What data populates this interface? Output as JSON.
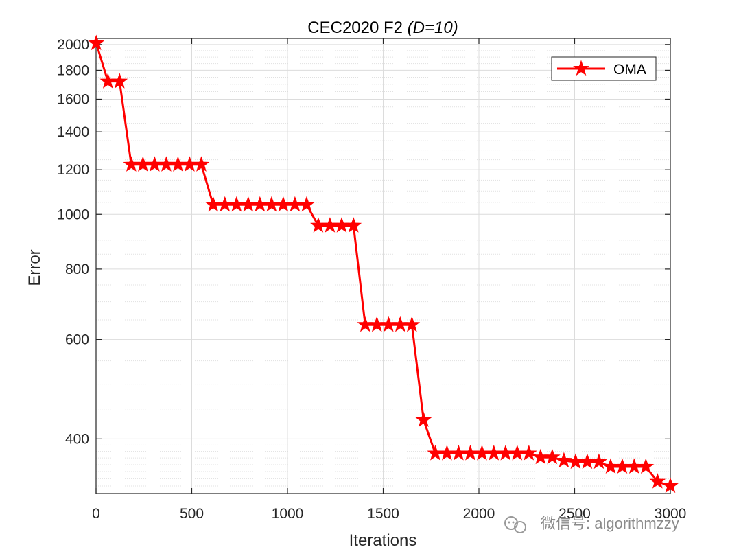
{
  "chart_data": {
    "type": "line",
    "title": "CEC2020 F2",
    "title_italic": "(D=10)",
    "xlabel": "Iterations",
    "ylabel": "Error",
    "xlim": [
      0,
      3000
    ],
    "ylim": [
      320,
      2050
    ],
    "yscale": "log",
    "grid": true,
    "legend_location": "top-right",
    "xticks": [
      0,
      500,
      1000,
      1500,
      2000,
      2500,
      3000
    ],
    "yticks": [
      400,
      600,
      800,
      1000,
      1200,
      1400,
      1600,
      1800,
      2000
    ],
    "series": [
      {
        "name": "OMA",
        "color": "#ff0000",
        "marker": "star",
        "x": [
          1,
          62,
          123,
          184,
          245,
          306,
          367,
          428,
          489,
          550,
          612,
          673,
          734,
          795,
          856,
          917,
          978,
          1039,
          1100,
          1161,
          1222,
          1283,
          1345,
          1406,
          1467,
          1528,
          1589,
          1650,
          1711,
          1772,
          1833,
          1894,
          1955,
          2016,
          2078,
          2139,
          2200,
          2261,
          2322,
          2383,
          2444,
          2505,
          2566,
          2627,
          2688,
          2749,
          2811,
          2872,
          2933,
          3000
        ],
        "y": [
          2010,
          1720,
          1720,
          1225,
          1225,
          1225,
          1225,
          1225,
          1225,
          1225,
          1040,
          1040,
          1040,
          1040,
          1040,
          1040,
          1040,
          1040,
          1040,
          955,
          955,
          955,
          955,
          637,
          637,
          637,
          637,
          637,
          432,
          377,
          377,
          377,
          377,
          377,
          377,
          377,
          377,
          377,
          371,
          371,
          366,
          364,
          364,
          364,
          357,
          357,
          357,
          357,
          336,
          330
        ]
      }
    ]
  },
  "watermark": {
    "text": "微信号: algorithmzzy"
  }
}
